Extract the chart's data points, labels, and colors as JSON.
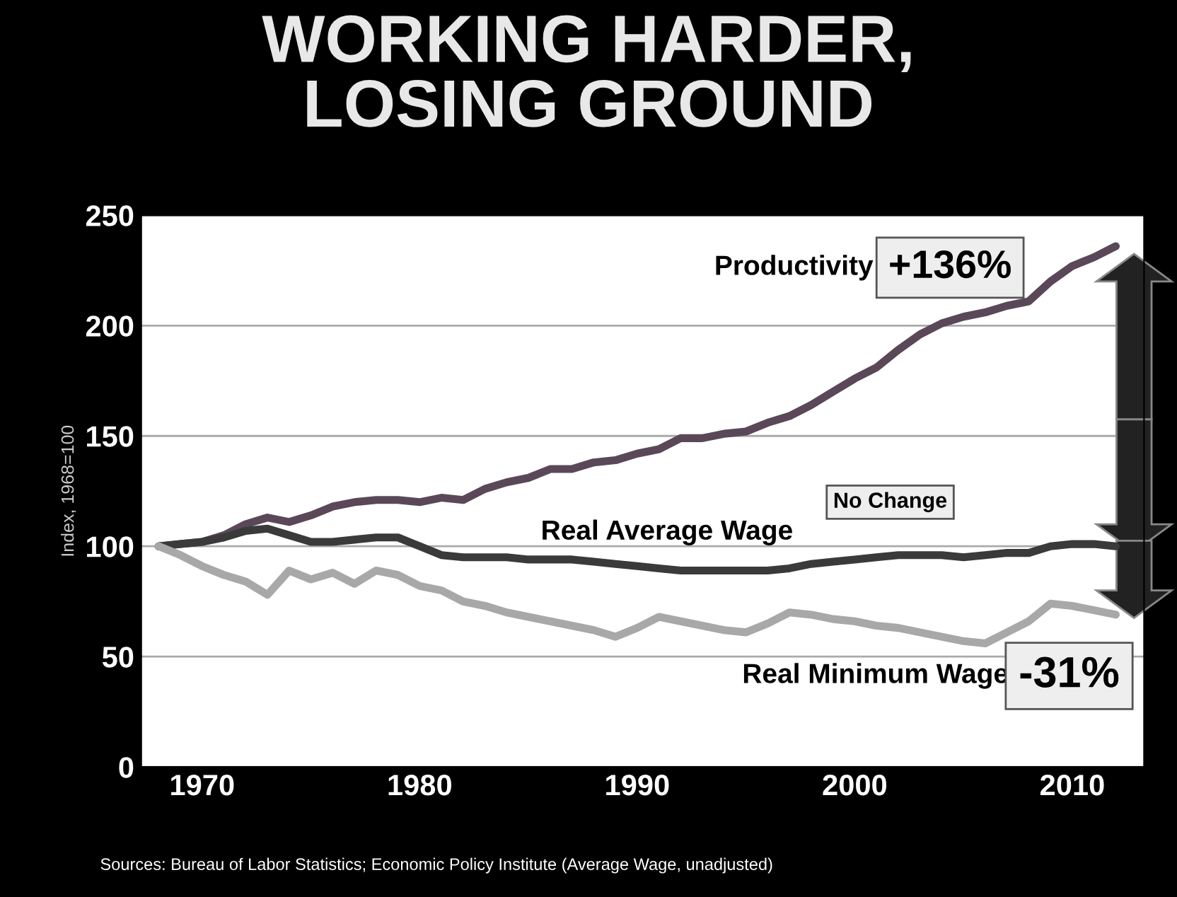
{
  "chart_data": {
    "type": "line",
    "title": "WORKING HARDER,\nLOSING GROUND",
    "ylabel": "Index, 1968=100",
    "x": [
      1968,
      1969,
      1970,
      1971,
      1972,
      1973,
      1974,
      1975,
      1976,
      1977,
      1978,
      1979,
      1980,
      1981,
      1982,
      1983,
      1984,
      1985,
      1986,
      1987,
      1988,
      1989,
      1990,
      1991,
      1992,
      1993,
      1994,
      1995,
      1996,
      1997,
      1998,
      1999,
      2000,
      2001,
      2002,
      2003,
      2004,
      2005,
      2006,
      2007,
      2008,
      2009,
      2010,
      2011,
      2012
    ],
    "series": [
      {
        "name": "Productivity",
        "color": "#5a4858",
        "values": [
          100,
          101,
          102,
          105,
          110,
          113,
          111,
          114,
          118,
          120,
          121,
          121,
          120,
          122,
          121,
          126,
          129,
          131,
          135,
          135,
          138,
          139,
          142,
          144,
          149,
          149,
          151,
          152,
          156,
          159,
          164,
          170,
          176,
          181,
          189,
          196,
          201,
          204,
          206,
          209,
          211,
          220,
          227,
          231,
          236
        ]
      },
      {
        "name": "Real Average Wage",
        "color": "#3a3a3a",
        "values": [
          100,
          101,
          102,
          104,
          107,
          108,
          105,
          102,
          102,
          103,
          104,
          104,
          100,
          96,
          95,
          95,
          95,
          94,
          94,
          94,
          93,
          92,
          91,
          90,
          89,
          89,
          89,
          89,
          89,
          90,
          92,
          93,
          94,
          95,
          96,
          96,
          96,
          95,
          96,
          97,
          97,
          100,
          101,
          101,
          100
        ]
      },
      {
        "name": "Real Minimum Wage",
        "color": "#a8a8a8",
        "values": [
          100,
          96,
          91,
          87,
          84,
          78,
          89,
          85,
          88,
          83,
          89,
          87,
          82,
          80,
          75,
          73,
          70,
          68,
          66,
          64,
          62,
          59,
          63,
          68,
          66,
          64,
          62,
          61,
          65,
          70,
          69,
          67,
          66,
          64,
          63,
          61,
          59,
          57,
          56,
          61,
          66,
          74,
          73,
          71,
          69
        ]
      }
    ],
    "xlim": [
      1967.2,
      2013.3
    ],
    "xticks": [
      1970,
      1980,
      1990,
      2000,
      2010
    ],
    "ylim": [
      0,
      250
    ],
    "yticks": [
      0,
      50,
      100,
      150,
      200,
      250
    ],
    "grid": "y",
    "legend": false,
    "annotations": [
      "+136%",
      "No Change",
      "-31%",
      "Sources: Bureau of Labor Statistics; Economic Policy Institute (Average Wage, unadjusted)"
    ]
  }
}
